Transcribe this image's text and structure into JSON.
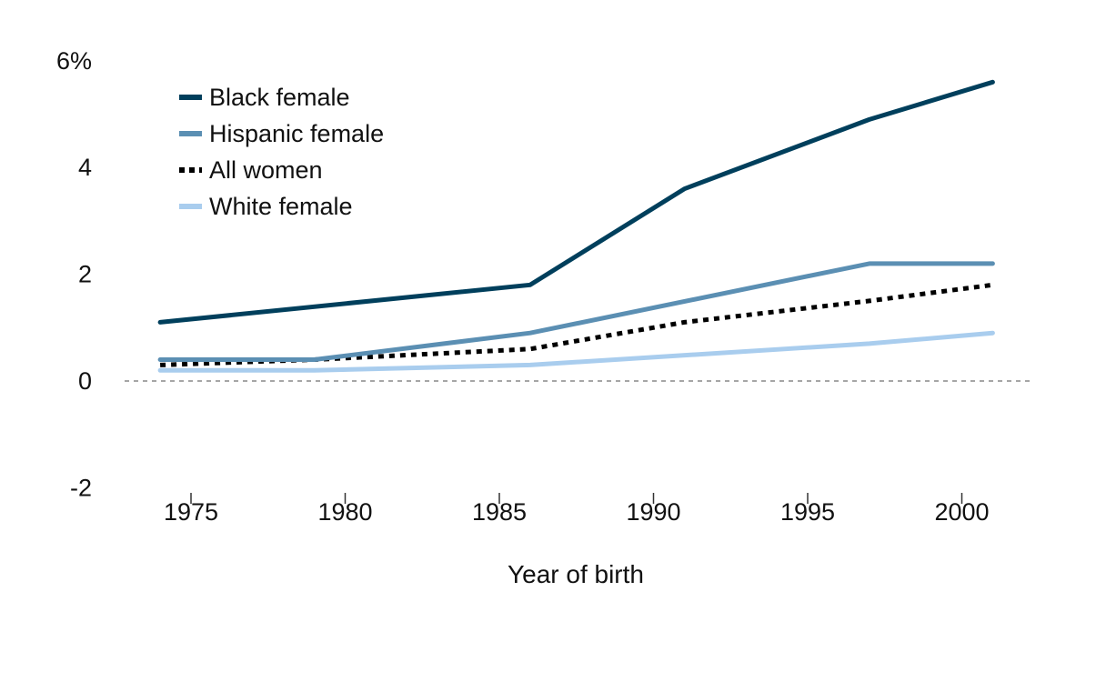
{
  "chart_data": {
    "type": "line",
    "xlabel": "Year of birth",
    "ylabel": "",
    "xlim": [
      1972,
      2003
    ],
    "ylim": [
      -2,
      6
    ],
    "xticks": [
      "1975",
      "1980",
      "1985",
      "1990",
      "1995",
      "2000"
    ],
    "yticks": [
      "-2",
      "0",
      "2",
      "4",
      "6%"
    ],
    "zero_line": "dashed",
    "grid": false,
    "legend_position": "top-left",
    "series": [
      {
        "name": "Black female",
        "color": "#003f5c",
        "style": "solid",
        "x": [
          1974,
          1986,
          1991,
          1997,
          2001
        ],
        "y": [
          1.1,
          1.8,
          3.6,
          4.9,
          5.6
        ]
      },
      {
        "name": "Hispanic female",
        "color": "#5b8fb3",
        "style": "solid",
        "x": [
          1974,
          1979,
          1986,
          1997,
          2001
        ],
        "y": [
          0.4,
          0.4,
          0.9,
          2.2,
          2.2
        ]
      },
      {
        "name": "All women",
        "color": "#000000",
        "style": "dotted",
        "x": [
          1974,
          1979,
          1986,
          1991,
          1997,
          2001
        ],
        "y": [
          0.3,
          0.4,
          0.6,
          1.1,
          1.5,
          1.8
        ]
      },
      {
        "name": "White female",
        "color": "#a9cdee",
        "style": "solid",
        "x": [
          1974,
          1979,
          1986,
          1997,
          2001
        ],
        "y": [
          0.2,
          0.2,
          0.3,
          0.7,
          0.9
        ]
      }
    ]
  }
}
